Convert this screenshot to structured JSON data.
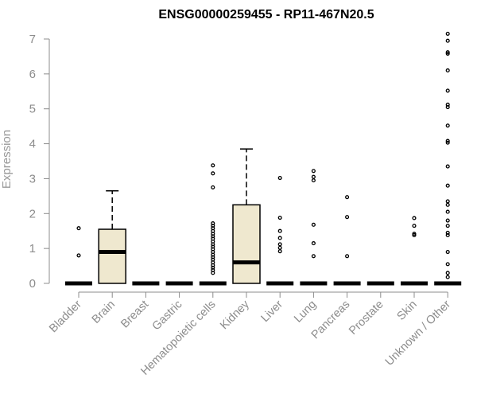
{
  "chart_data": {
    "type": "boxplot",
    "title": "ENSG00000259455 - RP11-467N20.5",
    "ylabel": "Expression",
    "xlabel": "",
    "ylim": [
      0,
      7
    ],
    "yticks": [
      0,
      1,
      2,
      3,
      4,
      5,
      6,
      7
    ],
    "grid": false,
    "legend": "none",
    "box_fill": "#efe8cf",
    "categories": [
      "Bladder",
      "Brain",
      "Breast",
      "Gastric",
      "Hematopoietic cells",
      "Kidney",
      "Liver",
      "Lung",
      "Pancreas",
      "Prostate",
      "Skin",
      "Unknown / Other"
    ],
    "series": [
      {
        "q1": 0,
        "median": 0,
        "q3": 0,
        "whisker_low": 0,
        "whisker_high": 0,
        "outliers": [
          0.8,
          1.58
        ]
      },
      {
        "q1": 0,
        "median": 0.9,
        "q3": 1.55,
        "whisker_low": 0,
        "whisker_high": 2.65,
        "outliers": []
      },
      {
        "q1": 0,
        "median": 0,
        "q3": 0,
        "whisker_low": 0,
        "whisker_high": 0,
        "outliers": []
      },
      {
        "q1": 0,
        "median": 0,
        "q3": 0,
        "whisker_low": 0,
        "whisker_high": 0,
        "outliers": []
      },
      {
        "q1": 0,
        "median": 0,
        "q3": 0,
        "whisker_low": 0,
        "whisker_high": 0,
        "outliers": [
          0.3,
          0.38,
          0.45,
          0.52,
          0.6,
          0.68,
          0.75,
          0.82,
          0.9,
          0.98,
          1.05,
          1.12,
          1.2,
          1.28,
          1.35,
          1.42,
          1.5,
          1.58,
          1.65,
          1.72,
          2.75,
          3.15,
          3.38
        ]
      },
      {
        "q1": 0,
        "median": 0.6,
        "q3": 2.25,
        "whisker_low": 0,
        "whisker_high": 3.85,
        "outliers": []
      },
      {
        "q1": 0,
        "median": 0,
        "q3": 0,
        "whisker_low": 0,
        "whisker_high": 0,
        "outliers": [
          0.92,
          1.02,
          1.12,
          1.3,
          1.5,
          1.88,
          3.02
        ]
      },
      {
        "q1": 0,
        "median": 0,
        "q3": 0,
        "whisker_low": 0,
        "whisker_high": 0,
        "outliers": [
          0.78,
          1.15,
          1.68,
          2.95,
          3.05,
          3.22
        ]
      },
      {
        "q1": 0,
        "median": 0,
        "q3": 0,
        "whisker_low": 0,
        "whisker_high": 0,
        "outliers": [
          0.78,
          1.9,
          2.47
        ]
      },
      {
        "q1": 0,
        "median": 0,
        "q3": 0,
        "whisker_low": 0,
        "whisker_high": 0,
        "outliers": []
      },
      {
        "q1": 0,
        "median": 0,
        "q3": 0,
        "whisker_low": 0,
        "whisker_high": 0,
        "outliers": [
          1.38,
          1.42,
          1.65,
          1.87
        ]
      },
      {
        "q1": 0,
        "median": 0,
        "q3": 0,
        "whisker_low": 0,
        "whisker_high": 0,
        "outliers": [
          0.18,
          0.3,
          0.55,
          0.9,
          1.38,
          1.45,
          1.65,
          1.8,
          2.05,
          2.25,
          2.35,
          2.8,
          3.35,
          4.03,
          4.08,
          4.52,
          5.05,
          5.12,
          5.52,
          6.1,
          6.58,
          6.62,
          6.95,
          7.15
        ]
      }
    ]
  }
}
